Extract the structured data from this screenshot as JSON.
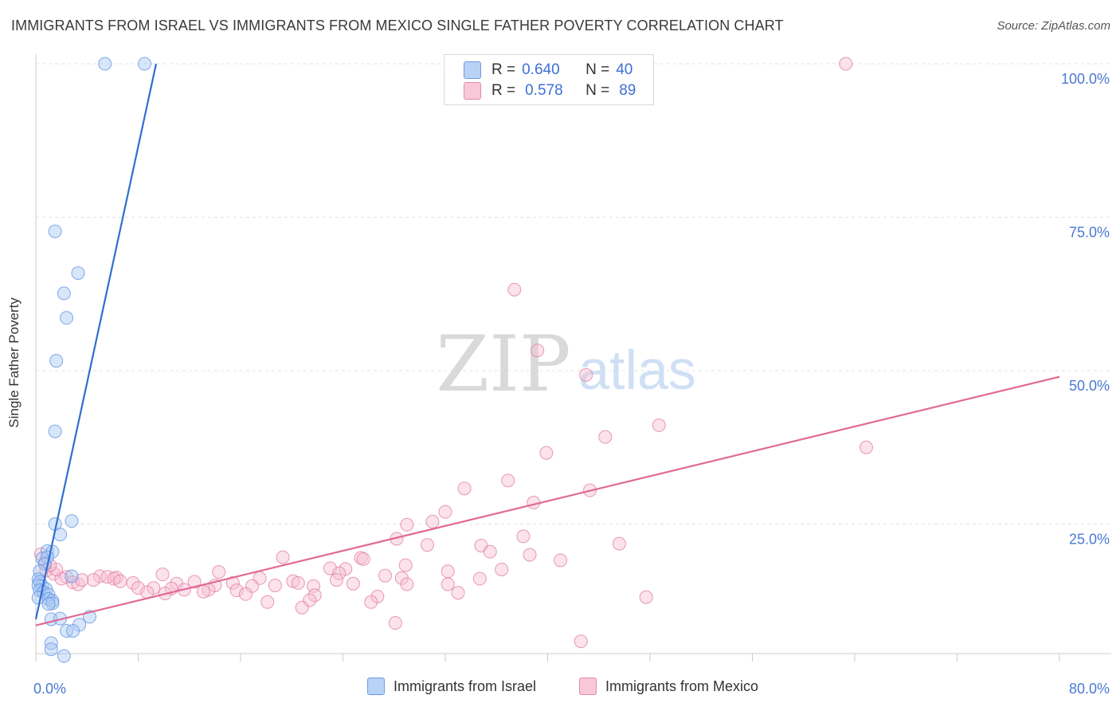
{
  "title": "IMMIGRANTS FROM ISRAEL VS IMMIGRANTS FROM MEXICO SINGLE FATHER POVERTY CORRELATION CHART",
  "source": "Source: ZipAtlas.com",
  "watermark": {
    "zip": "ZIP",
    "atlas": "atlas"
  },
  "legend": {
    "r_label": "R =",
    "n_label": "N =",
    "series": [
      {
        "r": "0.640",
        "n": "40"
      },
      {
        "r": "0.578",
        "n": "89"
      }
    ]
  },
  "chart_data": {
    "type": "scatter",
    "title": "IMMIGRANTS FROM ISRAEL VS IMMIGRANTS FROM MEXICO SINGLE FATHER POVERTY CORRELATION CHART",
    "xlabel": "",
    "ylabel": "Single Father Poverty",
    "xlim": [
      0,
      80
    ],
    "ylim": [
      0,
      100
    ],
    "x_tick_labels": [
      "0.0%",
      "80.0%"
    ],
    "y_tick_labels": [
      "25.0%",
      "50.0%",
      "75.0%",
      "100.0%"
    ],
    "y_ticks": [
      25,
      50,
      75,
      100
    ],
    "grid": true,
    "series": [
      {
        "name": "Immigrants from Israel",
        "color": "#5b8fe0",
        "fill": "#a9c8f3",
        "trend": [
          [
            0.0,
            9.5
          ],
          [
            9.4,
            100.0
          ]
        ],
        "points": [
          [
            5.4,
            100
          ],
          [
            8.5,
            100
          ],
          [
            1.5,
            72.7
          ],
          [
            3.3,
            65.9
          ],
          [
            2.2,
            62.6
          ],
          [
            2.4,
            58.6
          ],
          [
            1.6,
            51.6
          ],
          [
            1.5,
            40.1
          ],
          [
            1.5,
            25
          ],
          [
            2.8,
            25.5
          ],
          [
            1.9,
            23.3
          ],
          [
            0.9,
            20.6
          ],
          [
            1.3,
            20.5
          ],
          [
            0.5,
            19.4
          ],
          [
            0.9,
            19.6
          ],
          [
            0.7,
            18.5
          ],
          [
            0.3,
            17.3
          ],
          [
            0.2,
            16.0
          ],
          [
            2.8,
            16.5
          ],
          [
            0.3,
            15.6
          ],
          [
            0.5,
            14.9
          ],
          [
            0.2,
            15.0
          ],
          [
            0.8,
            14.4
          ],
          [
            0.3,
            14.2
          ],
          [
            0.6,
            13.9
          ],
          [
            1.0,
            13.5
          ],
          [
            0.2,
            13.0
          ],
          [
            1.0,
            12.8
          ],
          [
            1.3,
            12.5
          ],
          [
            1.3,
            12.1
          ],
          [
            1.0,
            12.0
          ],
          [
            4.2,
            9.9
          ],
          [
            1.2,
            9.5
          ],
          [
            1.9,
            9.6
          ],
          [
            3.4,
            8.6
          ],
          [
            2.4,
            7.6
          ],
          [
            2.9,
            7.6
          ],
          [
            1.2,
            5.6
          ],
          [
            1.2,
            4.6
          ],
          [
            2.2,
            3.5
          ]
        ]
      },
      {
        "name": "Immigrants from Mexico",
        "color": "#e07aa0",
        "fill": "#f7bfd2",
        "trend": [
          [
            0.0,
            8.5
          ],
          [
            80.0,
            49.0
          ]
        ],
        "points": [
          [
            63.3,
            100
          ],
          [
            37.4,
            63.2
          ],
          [
            39.2,
            53.3
          ],
          [
            43.0,
            49.3
          ],
          [
            48.7,
            41.1
          ],
          [
            44.5,
            39.2
          ],
          [
            64.9,
            37.5
          ],
          [
            39.9,
            36.6
          ],
          [
            36.9,
            32.1
          ],
          [
            33.5,
            30.8
          ],
          [
            43.3,
            30.5
          ],
          [
            38.9,
            28.5
          ],
          [
            32.0,
            27.0
          ],
          [
            31.0,
            25.4
          ],
          [
            29.0,
            24.9
          ],
          [
            28.2,
            22.6
          ],
          [
            38.1,
            23.0
          ],
          [
            30.6,
            21.6
          ],
          [
            34.8,
            21.5
          ],
          [
            45.6,
            21.8
          ],
          [
            35.5,
            20.5
          ],
          [
            38.6,
            20.0
          ],
          [
            19.3,
            19.6
          ],
          [
            25.4,
            19.5
          ],
          [
            25.6,
            19.3
          ],
          [
            41.0,
            19.1
          ],
          [
            28.9,
            18.3
          ],
          [
            36.4,
            17.6
          ],
          [
            23.0,
            17.8
          ],
          [
            24.2,
            17.7
          ],
          [
            32.2,
            17.3
          ],
          [
            14.3,
            17.2
          ],
          [
            9.9,
            16.8
          ],
          [
            23.7,
            17.0
          ],
          [
            27.3,
            16.6
          ],
          [
            17.5,
            16.2
          ],
          [
            28.6,
            16.2
          ],
          [
            34.7,
            16.1
          ],
          [
            2.4,
            16.4
          ],
          [
            5.0,
            16.5
          ],
          [
            5.6,
            16.4
          ],
          [
            6.3,
            16.3
          ],
          [
            6.1,
            16.1
          ],
          [
            4.5,
            15.9
          ],
          [
            6.6,
            15.7
          ],
          [
            7.6,
            15.4
          ],
          [
            12.4,
            15.6
          ],
          [
            20.1,
            15.7
          ],
          [
            15.4,
            15.4
          ],
          [
            20.5,
            15.4
          ],
          [
            23.5,
            15.9
          ],
          [
            29.0,
            15.2
          ],
          [
            21.7,
            14.9
          ],
          [
            18.7,
            15.0
          ],
          [
            24.8,
            15.3
          ],
          [
            32.2,
            15.2
          ],
          [
            11.0,
            15.3
          ],
          [
            14.0,
            15.0
          ],
          [
            16.9,
            14.9
          ],
          [
            8.0,
            14.6
          ],
          [
            9.2,
            14.6
          ],
          [
            10.6,
            14.5
          ],
          [
            11.6,
            14.3
          ],
          [
            13.5,
            14.3
          ],
          [
            15.7,
            14.2
          ],
          [
            13.1,
            14.0
          ],
          [
            8.7,
            13.9
          ],
          [
            10.1,
            13.7
          ],
          [
            16.4,
            13.6
          ],
          [
            33.0,
            13.8
          ],
          [
            21.8,
            13.4
          ],
          [
            26.7,
            13.2
          ],
          [
            18.1,
            12.3
          ],
          [
            21.4,
            12.6
          ],
          [
            26.2,
            12.3
          ],
          [
            47.7,
            13.1
          ],
          [
            20.8,
            11.4
          ],
          [
            28.1,
            8.9
          ],
          [
            42.6,
            5.9
          ],
          [
            0.8,
            17.4
          ],
          [
            1.4,
            16.9
          ],
          [
            2.0,
            16.1
          ],
          [
            2.9,
            15.5
          ],
          [
            3.3,
            15.2
          ],
          [
            3.6,
            15.9
          ],
          [
            1.6,
            17.6
          ],
          [
            0.7,
            18.7
          ],
          [
            0.4,
            20.1
          ],
          [
            1.1,
            18.3
          ]
        ]
      }
    ]
  }
}
